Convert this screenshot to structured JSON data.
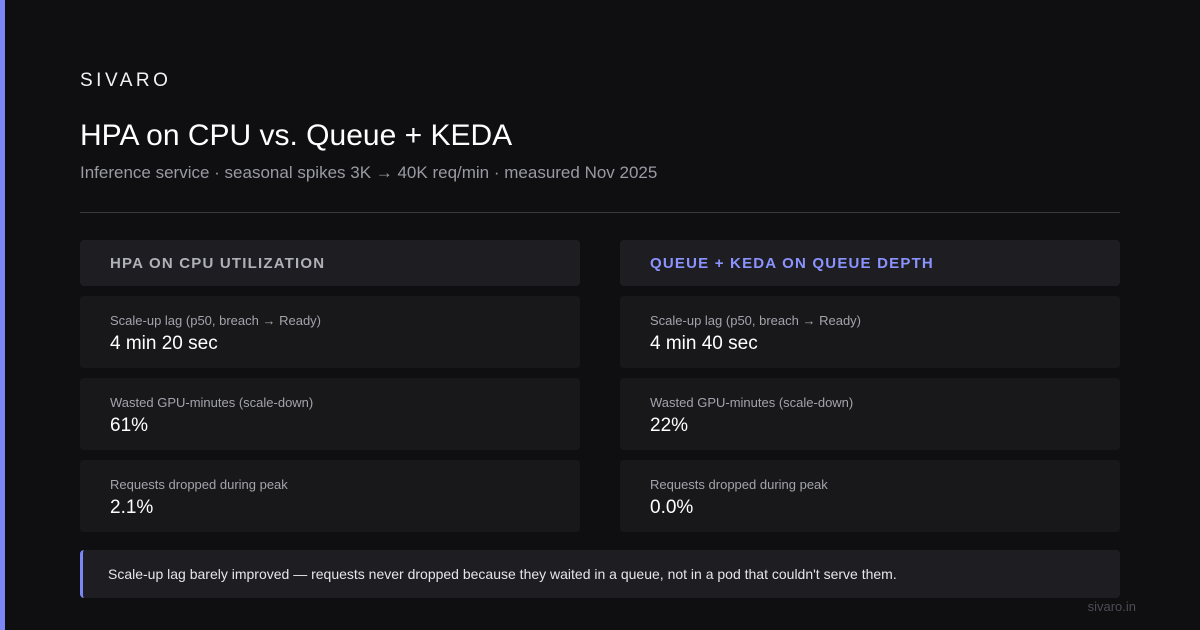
{
  "colors": {
    "background": "#0f0f11",
    "accent": "#7c86f5",
    "card": "#18181b",
    "header_card": "#1e1e22"
  },
  "brand": "SIVARO",
  "title": "HPA on CPU vs. Queue + KEDA",
  "subtitle": "Inference service · seasonal spikes 3K → 40K req/min · measured Nov 2025",
  "columns": [
    {
      "header": "HPA ON CPU UTILIZATION",
      "metrics": [
        {
          "label": "Scale-up lag (p50, breach → Ready)",
          "value": "4 min 20 sec"
        },
        {
          "label": "Wasted GPU-minutes (scale-down)",
          "value": "61%"
        },
        {
          "label": "Requests dropped during peak",
          "value": "2.1%"
        }
      ]
    },
    {
      "header": "QUEUE + KEDA ON QUEUE DEPTH",
      "metrics": [
        {
          "label": "Scale-up lag (p50, breach → Ready)",
          "value": "4 min 40 sec"
        },
        {
          "label": "Wasted GPU-minutes (scale-down)",
          "value": "22%"
        },
        {
          "label": "Requests dropped during peak",
          "value": "0.0%"
        }
      ]
    }
  ],
  "note": "Scale-up lag barely improved — requests never dropped because they waited in a queue, not in a pod that couldn't serve them.",
  "footer": "sivaro.in"
}
